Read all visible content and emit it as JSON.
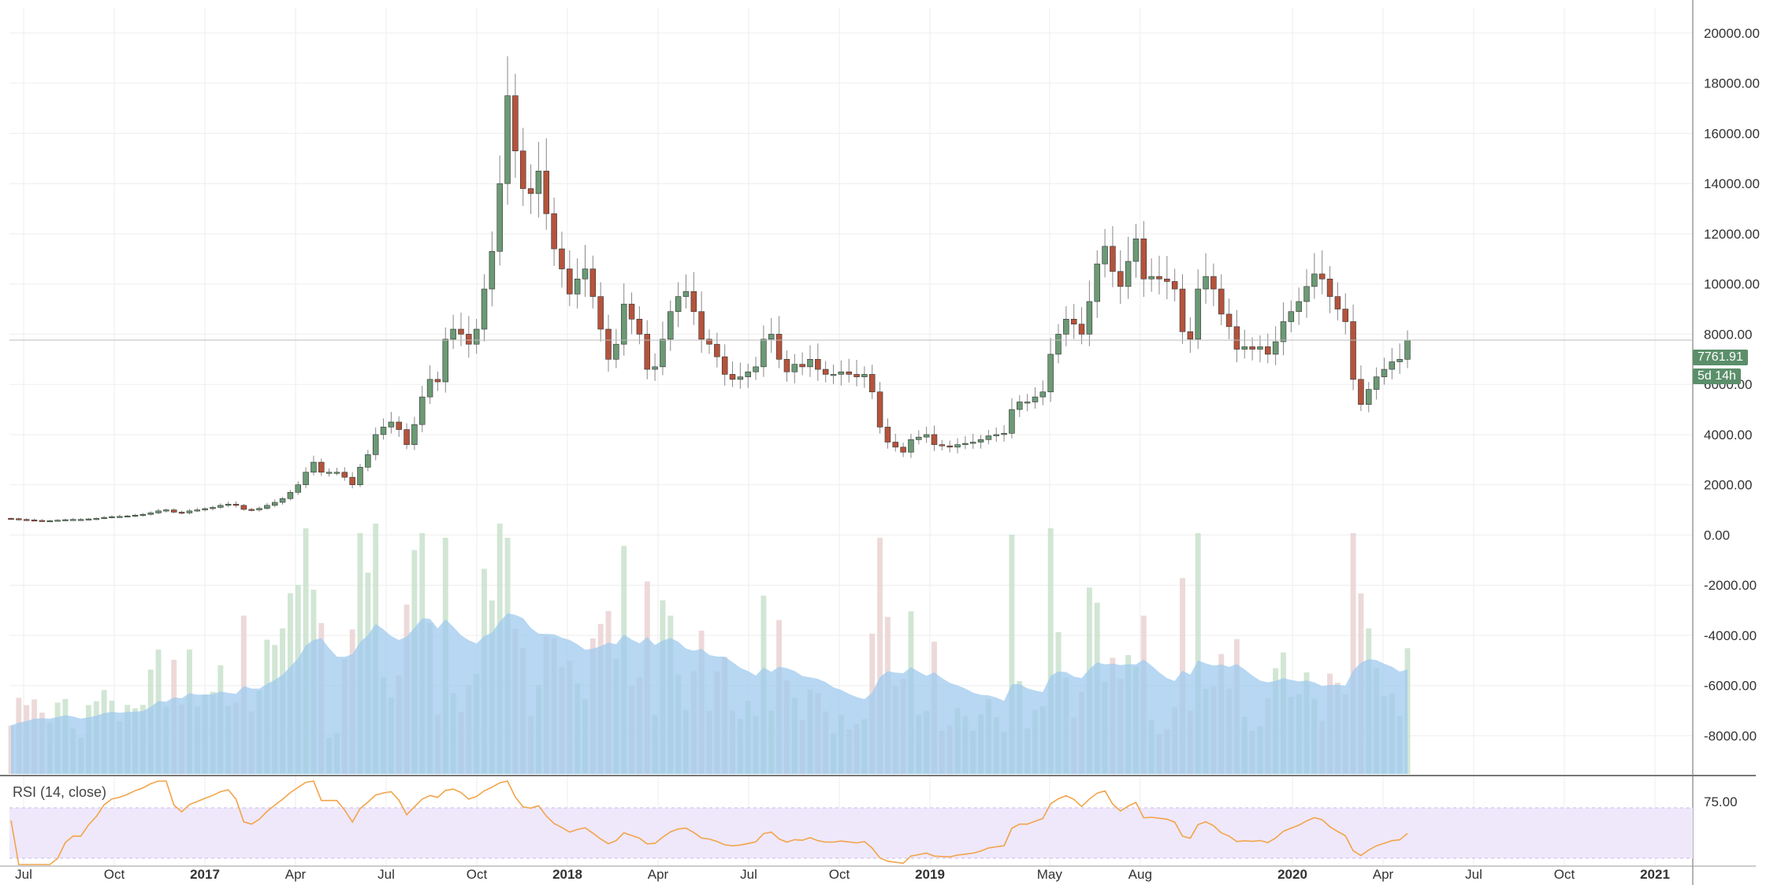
{
  "chart_data": {
    "type": "candlestick",
    "price_axis_ticks": [
      "20000.00",
      "18000.00",
      "16000.00",
      "14000.00",
      "12000.00",
      "10000.00",
      "8000.00",
      "6000.00",
      "4000.00",
      "2000.00",
      "0.00",
      "-2000.00",
      "-4000.00",
      "-6000.00",
      "-8000.00"
    ],
    "ylim": [
      -8800,
      21000
    ],
    "time_axis_ticks": [
      {
        "label": "Jul",
        "bold": false,
        "t": 0.0
      },
      {
        "label": "Oct",
        "bold": false,
        "t": 0.25
      },
      {
        "label": "2017",
        "bold": true,
        "t": 0.5
      },
      {
        "label": "Apr",
        "bold": false,
        "t": 0.75
      },
      {
        "label": "Jul",
        "bold": false,
        "t": 1.0
      },
      {
        "label": "Oct",
        "bold": false,
        "t": 1.25
      },
      {
        "label": "2018",
        "bold": true,
        "t": 1.5
      },
      {
        "label": "Apr",
        "bold": false,
        "t": 1.75
      },
      {
        "label": "Jul",
        "bold": false,
        "t": 2.0
      },
      {
        "label": "Oct",
        "bold": false,
        "t": 2.25
      },
      {
        "label": "2019",
        "bold": true,
        "t": 2.5
      },
      {
        "label": "May",
        "bold": false,
        "t": 2.83
      },
      {
        "label": "Aug",
        "bold": false,
        "t": 3.08
      },
      {
        "label": "2020",
        "bold": true,
        "t": 3.5
      },
      {
        "label": "Apr",
        "bold": false,
        "t": 3.75
      },
      {
        "label": "Jul",
        "bold": false,
        "t": 4.0
      },
      {
        "label": "Oct",
        "bold": false,
        "t": 4.25
      },
      {
        "label": "2021",
        "bold": true,
        "t": 4.5
      }
    ],
    "last_price": "7761.91",
    "countdown": "5d 14h",
    "closes": [
      650,
      620,
      600,
      580,
      560,
      570,
      590,
      610,
      620,
      620,
      640,
      660,
      700,
      730,
      740,
      760,
      790,
      820,
      880,
      960,
      1000,
      910,
      880,
      960,
      1000,
      1050,
      1100,
      1180,
      1230,
      1180,
      1020,
      1000,
      1060,
      1180,
      1300,
      1450,
      1700,
      2000,
      2500,
      2900,
      2500,
      2500,
      2500,
      2300,
      2000,
      2700,
      3200,
      4000,
      4300,
      4500,
      4200,
      3600,
      4400,
      5500,
      6200,
      6100,
      7800,
      8200,
      8000,
      7600,
      8200,
      9800,
      11300,
      14000,
      17500,
      15300,
      13800,
      13600,
      14500,
      12800,
      11400,
      10600,
      9600,
      10200,
      10600,
      9500,
      8200,
      7000,
      7600,
      9200,
      8600,
      8000,
      6600,
      6700,
      7800,
      8900,
      9500,
      9700,
      8900,
      7800,
      7600,
      7100,
      6400,
      6200,
      6300,
      6500,
      6700,
      7800,
      8000,
      7000,
      6500,
      6800,
      6700,
      7000,
      6600,
      6400,
      6400,
      6500,
      6400,
      6300,
      6400,
      5700,
      4300,
      3700,
      3500,
      3300,
      3800,
      3900,
      4000,
      3600,
      3550,
      3500,
      3600,
      3650,
      3700,
      3800,
      3950,
      4000,
      4050,
      5000,
      5300,
      5300,
      5500,
      5700,
      7200,
      8000,
      8600,
      8400,
      8000,
      9300,
      10800,
      11500,
      10500,
      9900,
      10900,
      11800,
      10200,
      10300,
      10200,
      10100,
      9800,
      8100,
      7800,
      9800,
      10300,
      9800,
      8800,
      8300,
      7400,
      7500,
      7400,
      7500,
      7200,
      7700,
      8500,
      8900,
      9300,
      9900,
      10400,
      10200,
      9500,
      9000,
      8500,
      6200,
      5200,
      5800,
      6300,
      6600,
      6900,
      7000,
      7762
    ],
    "rsi_label": "RSI (14, close)",
    "rsi_ticks": [
      "75.00"
    ],
    "rsi_bands": [
      70,
      30
    ]
  }
}
